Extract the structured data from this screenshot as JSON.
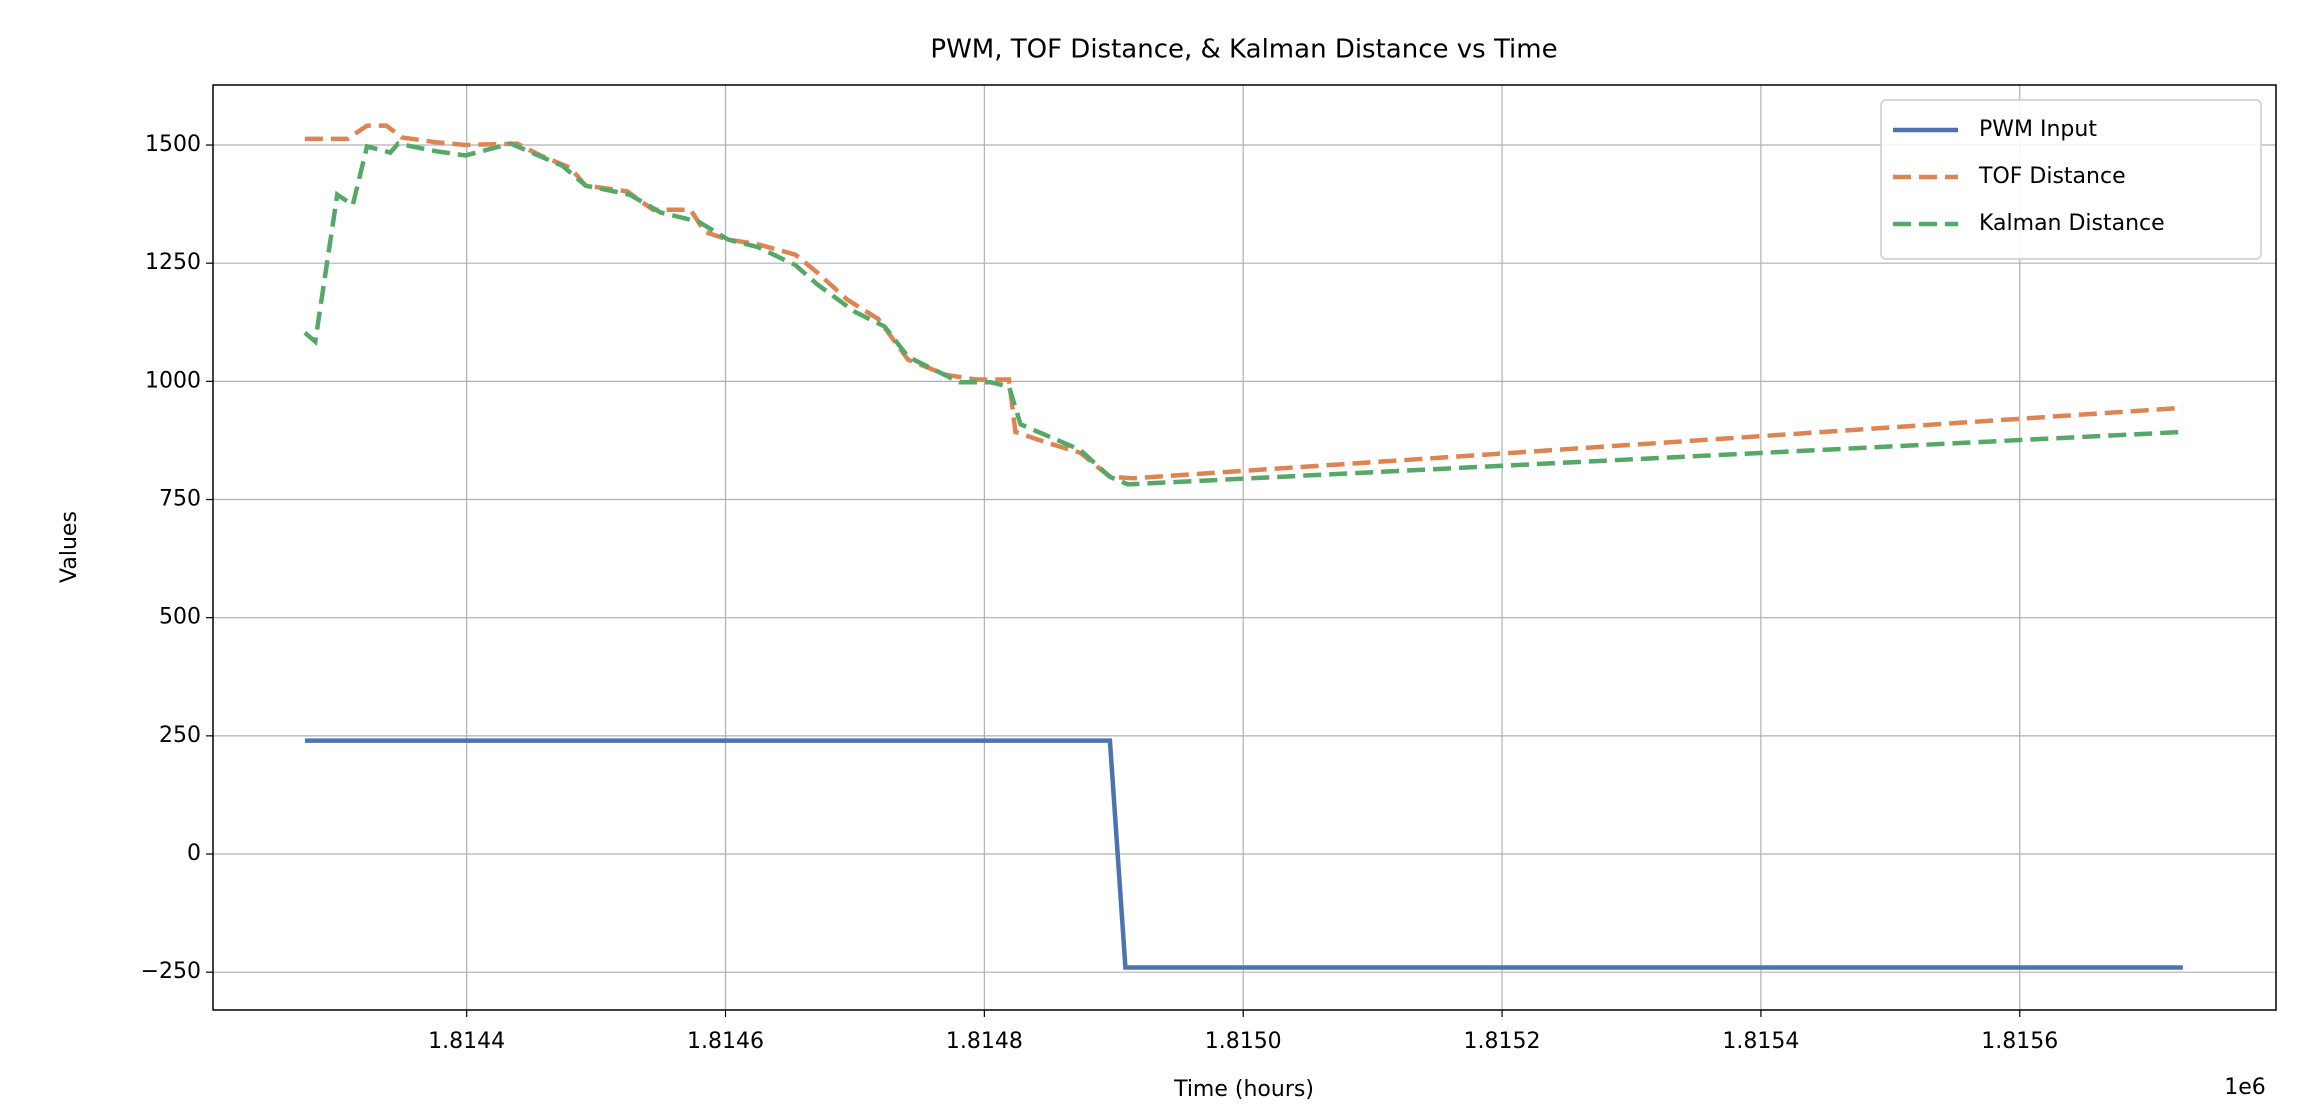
{
  "chart_data": {
    "type": "line",
    "title": "PWM, TOF Distance, & Kalman Distance vs Time",
    "xlabel": "Time (hours)",
    "ylabel": "Values",
    "x_offset_label": "1e6",
    "xlim": [
      1814204,
      1815798
    ],
    "ylim": [
      -330,
      1627
    ],
    "xticks": [
      {
        "value": 1814400,
        "label": "1.8144"
      },
      {
        "value": 1814600,
        "label": "1.8146"
      },
      {
        "value": 1814800,
        "label": "1.8148"
      },
      {
        "value": 1815000,
        "label": "1.8150"
      },
      {
        "value": 1815200,
        "label": "1.8152"
      },
      {
        "value": 1815400,
        "label": "1.8154"
      },
      {
        "value": 1815600,
        "label": "1.8156"
      }
    ],
    "yticks": [
      {
        "value": -250,
        "label": "−250"
      },
      0,
      250,
      500,
      750,
      1000,
      1250,
      1500
    ],
    "grid": true,
    "legend": "upper right",
    "series": [
      {
        "name": "PWM Input",
        "color": "#4c72b0",
        "dash": "solid",
        "x": [
          1814275,
          1814897,
          1814909,
          1815726
        ],
        "values": [
          240,
          240,
          -240,
          -240
        ]
      },
      {
        "name": "TOF Distance",
        "color": "#dd8452",
        "dash": "dashed",
        "x": [
          1814275,
          1814308,
          1814323,
          1814338,
          1814350,
          1814376,
          1814399,
          1814439,
          1814457,
          1814480,
          1814492,
          1814524,
          1814544,
          1814573,
          1814584,
          1814602,
          1814625,
          1814654,
          1814671,
          1814694,
          1814718,
          1814741,
          1814770,
          1814793,
          1814819,
          1814824,
          1814851,
          1814874,
          1814897,
          1814915,
          1815726
        ],
        "values": [
          1513,
          1513,
          1541,
          1541,
          1516,
          1506,
          1500,
          1503,
          1478,
          1452,
          1414,
          1402,
          1363,
          1363,
          1316,
          1300,
          1290,
          1268,
          1230,
          1173,
          1132,
          1046,
          1014,
          1004,
          1004,
          893,
          868,
          849,
          798,
          795,
          944
        ]
      },
      {
        "name": "Kalman Distance",
        "color": "#55a868",
        "dash": "dashed",
        "x": [
          1814275,
          1814283,
          1814300,
          1814312,
          1814323,
          1814341,
          1814347,
          1814376,
          1814399,
          1814434,
          1814474,
          1814492,
          1814526,
          1814550,
          1814579,
          1814602,
          1814625,
          1814654,
          1814671,
          1814700,
          1814723,
          1814741,
          1814781,
          1814805,
          1814819,
          1814828,
          1814874,
          1814897,
          1814911,
          1815726
        ],
        "values": [
          1103,
          1084,
          1395,
          1373,
          1497,
          1484,
          1503,
          1487,
          1478,
          1503,
          1456,
          1414,
          1395,
          1357,
          1338,
          1300,
          1284,
          1246,
          1205,
          1147,
          1116,
          1052,
          998,
          998,
          989,
          909,
          855,
          798,
          782,
          893
        ]
      }
    ]
  }
}
